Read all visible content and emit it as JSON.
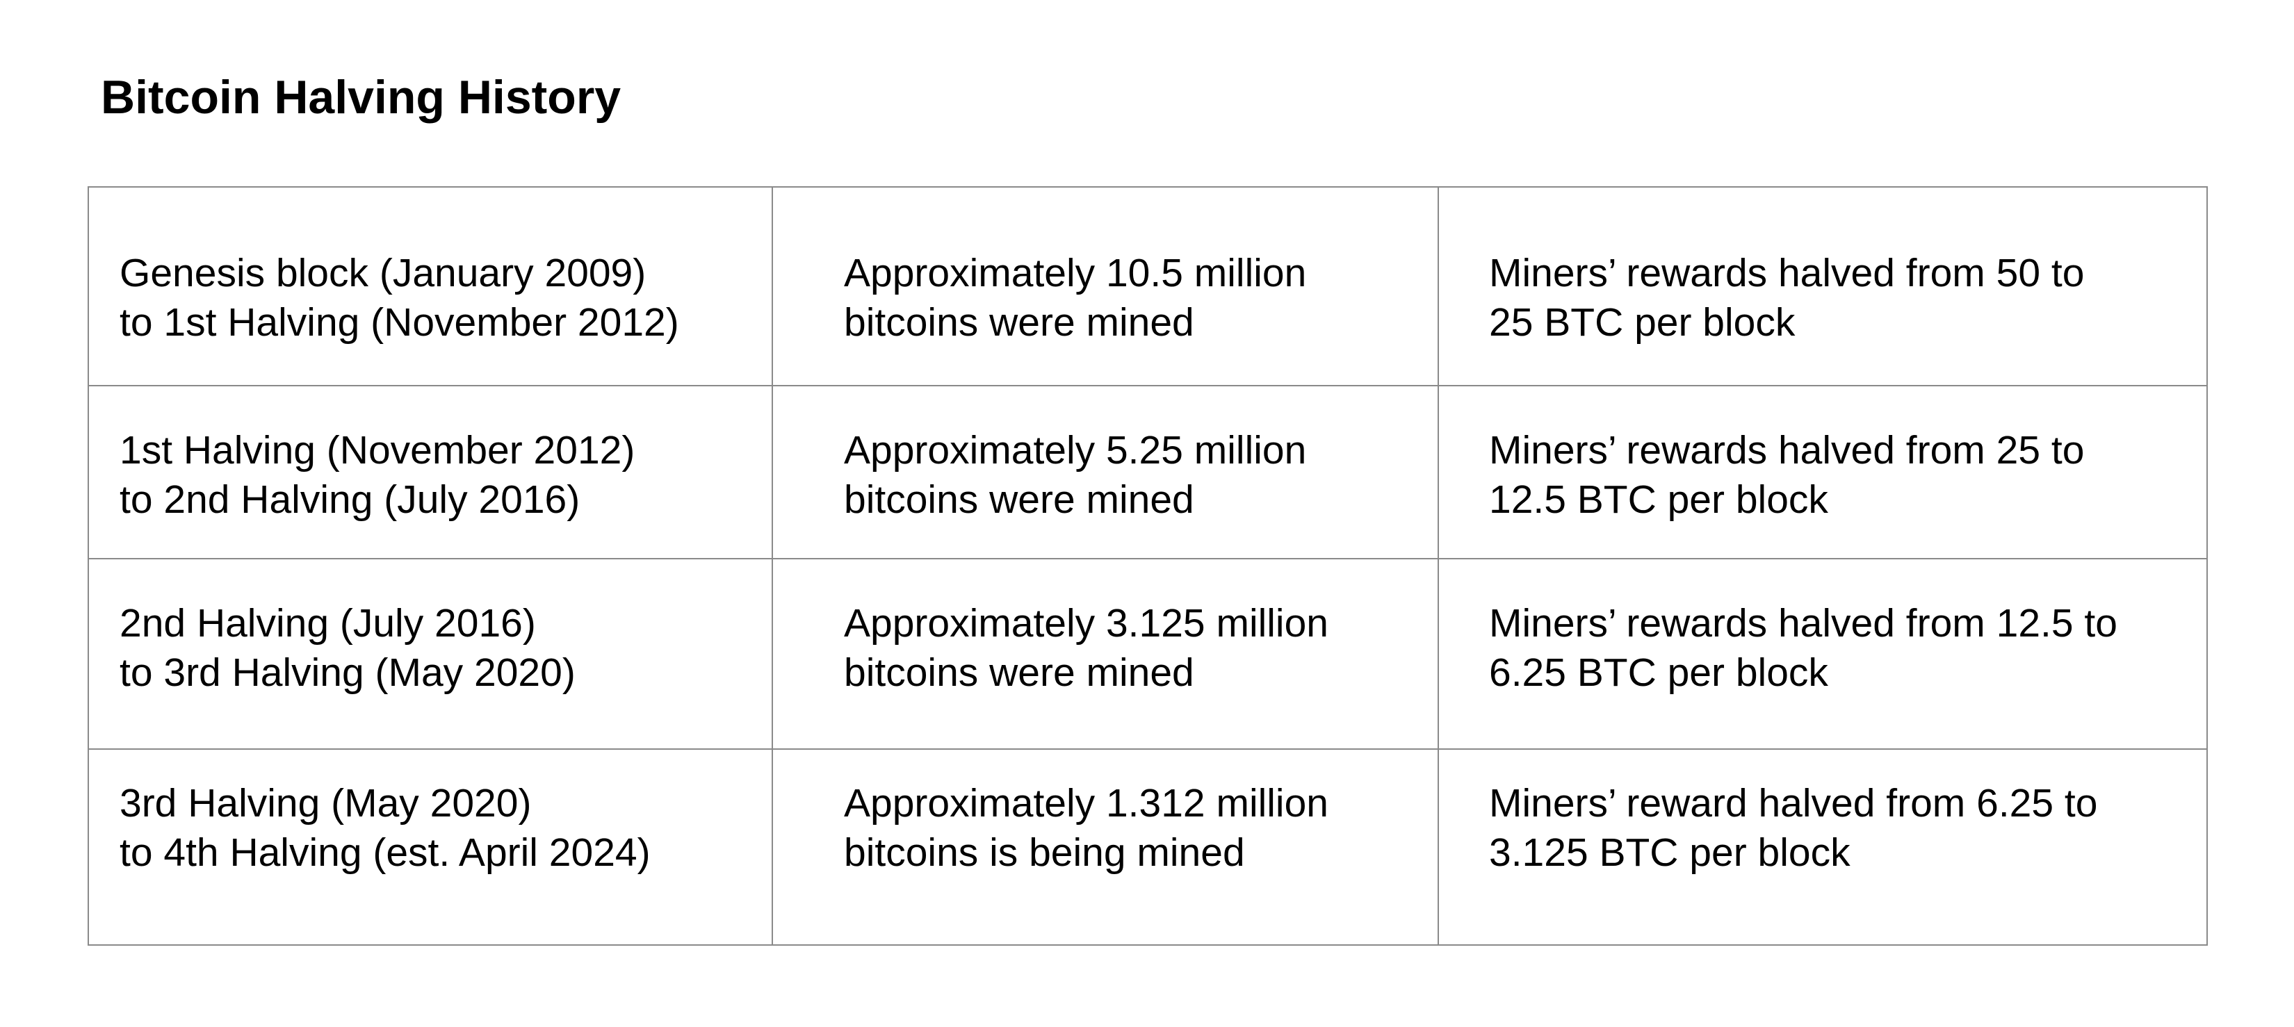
{
  "title": "Bitcoin Halving History",
  "rows": [
    {
      "period": [
        "Genesis block (January 2009)",
        "to 1st Halving (November 2012)"
      ],
      "mined": [
        "Approximately 10.5 million",
        "bitcoins were mined"
      ],
      "reward": [
        "Miners’ rewards halved from 50 to",
        "25 BTC per block"
      ]
    },
    {
      "period": [
        "1st Halving (November 2012)",
        "to 2nd Halving (July 2016)"
      ],
      "mined": [
        "Approximately 5.25 million",
        "bitcoins were mined"
      ],
      "reward": [
        "Miners’ rewards halved from 25 to",
        "12.5 BTC per block"
      ]
    },
    {
      "period": [
        "2nd Halving (July 2016)",
        "to 3rd Halving (May 2020)"
      ],
      "mined": [
        "Approximately 3.125 million",
        "bitcoins were mined"
      ],
      "reward": [
        "Miners’ rewards halved from 12.5 to",
        "6.25 BTC per block"
      ]
    },
    {
      "period": [
        "3rd Halving (May 2020)",
        "to 4th Halving (est. April 2024)"
      ],
      "mined": [
        "Approximately 1.312 million",
        "bitcoins is being mined"
      ],
      "reward": [
        "Miners’ reward halved from 6.25 to",
        "3.125 BTC per block"
      ]
    }
  ]
}
